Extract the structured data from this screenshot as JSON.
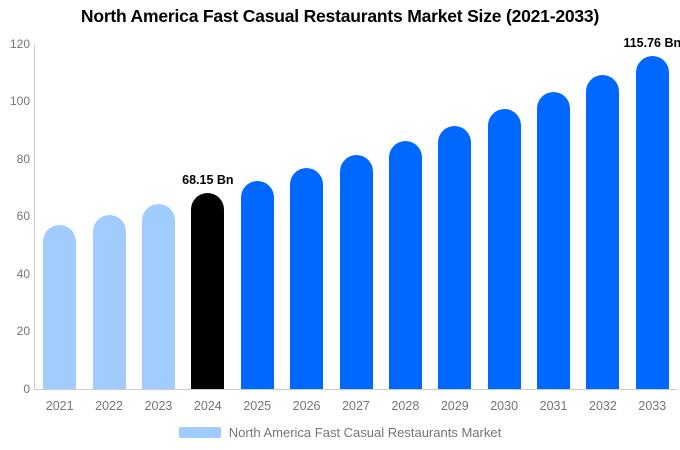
{
  "title": "North America Fast Casual Restaurants Market Size (2021-2033)",
  "colors": {
    "historical_bar": "#a0ccff",
    "current_bar": "#000000",
    "forecast_bar": "#0068ff",
    "axis_text": "#757575",
    "axis_line": "#cccccc",
    "annotation_text": "#000000"
  },
  "legend": {
    "label": "North America Fast Casual Restaurants Market",
    "swatch_color": "#a0ccff"
  },
  "chart_data": {
    "type": "bar",
    "title": "North America Fast Casual Restaurants Market Size (2021-2033)",
    "categories": [
      "2021",
      "2022",
      "2023",
      "2024",
      "2025",
      "2026",
      "2027",
      "2028",
      "2029",
      "2030",
      "2031",
      "2032",
      "2033"
    ],
    "values": [
      57.1,
      60.6,
      64.2,
      68.15,
      72.3,
      76.7,
      81.3,
      86.3,
      91.5,
      97.1,
      103.0,
      109.2,
      115.76
    ],
    "bar_colors": [
      "#a0ccff",
      "#a0ccff",
      "#a0ccff",
      "#000000",
      "#0068ff",
      "#0068ff",
      "#0068ff",
      "#0068ff",
      "#0068ff",
      "#0068ff",
      "#0068ff",
      "#0068ff",
      "#0068ff"
    ],
    "annotations": [
      {
        "category": "2024",
        "text": "68.15 Bn"
      },
      {
        "category": "2033",
        "text": "115.76 Bn"
      }
    ],
    "xlabel": "",
    "ylabel": "",
    "ylim": [
      0,
      120
    ],
    "yticks": [
      0,
      20,
      40,
      60,
      80,
      100,
      120
    ],
    "grid": false,
    "legend_entries": [
      "North America Fast Casual Restaurants Market"
    ],
    "legend_position": "bottom"
  }
}
